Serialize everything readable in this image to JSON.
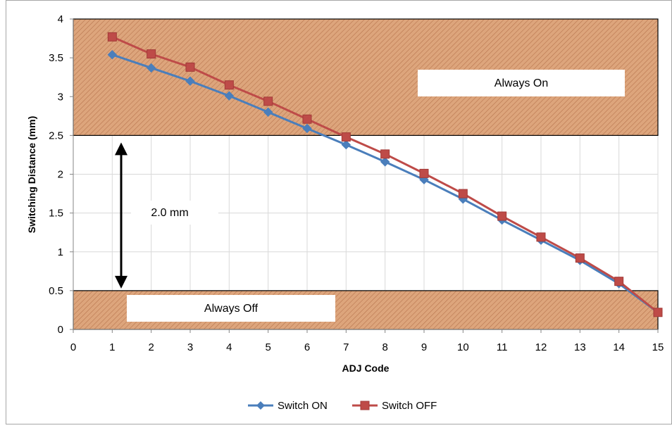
{
  "chart_data": {
    "type": "line",
    "xlabel": "ADJ Code",
    "ylabel": "Switching Distance (mm)",
    "xlim": [
      0,
      15
    ],
    "ylim": [
      0,
      4
    ],
    "x_ticks": [
      "0",
      "1",
      "2",
      "3",
      "4",
      "5",
      "6",
      "7",
      "8",
      "9",
      "10",
      "11",
      "12",
      "13",
      "14",
      "15"
    ],
    "y_ticks": [
      "0",
      "0.5",
      "1",
      "1.5",
      "2",
      "2.5",
      "3",
      "3.5",
      "4"
    ],
    "grid": true,
    "legend": "bottom",
    "series": [
      {
        "name": "Switch ON",
        "color": "#4a7ebb",
        "marker": "diamond",
        "x": [
          1,
          2,
          3,
          4,
          5,
          6,
          7,
          8,
          9,
          10,
          11,
          12,
          13,
          14,
          15
        ],
        "values": [
          3.54,
          3.37,
          3.2,
          3.01,
          2.8,
          2.59,
          2.38,
          2.16,
          1.93,
          1.68,
          1.41,
          1.15,
          0.89,
          0.59,
          0.22
        ]
      },
      {
        "name": "Switch OFF",
        "color": "#be4b48",
        "marker": "square",
        "x": [
          1,
          2,
          3,
          4,
          5,
          6,
          7,
          8,
          9,
          10,
          11,
          12,
          13,
          14,
          15
        ],
        "values": [
          3.77,
          3.55,
          3.38,
          3.15,
          2.94,
          2.71,
          2.48,
          2.26,
          2.01,
          1.75,
          1.46,
          1.19,
          0.92,
          0.62,
          0.22
        ]
      }
    ],
    "bands": [
      {
        "label": "Always On",
        "y0": 2.5,
        "y1": 4,
        "fill": "#dda57c"
      },
      {
        "label": "Always Off",
        "y0": 0,
        "y1": 0.5,
        "fill": "#dda57c"
      }
    ],
    "annotations": {
      "gap_label": "2.0 mm",
      "gap_from": 0.5,
      "gap_to": 2.5
    }
  }
}
